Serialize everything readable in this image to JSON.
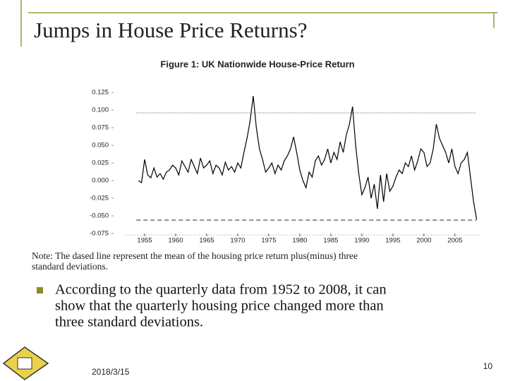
{
  "slide": {
    "title": "Jumps in House Price Returns?",
    "note": [
      "Note: The dased line represent the mean of the housing price return plus(minus) three",
      "standard deviations."
    ],
    "bullet": [
      "According to the quarterly data from 1952 to 2008, it can",
      "show that the quarterly housing price changed more than",
      "three standard deviations."
    ],
    "date": "2018/3/15",
    "page_number": "10"
  },
  "chart_data": {
    "type": "line",
    "title": "Figure 1: UK Nationwide House-Price Return",
    "color": "#000000",
    "x": [
      1954,
      1954.5,
      1955,
      1955.5,
      1956,
      1956.5,
      1957,
      1957.5,
      1958,
      1958.5,
      1959,
      1959.5,
      1960,
      1960.5,
      1961,
      1961.5,
      1962,
      1962.5,
      1963,
      1963.5,
      1964,
      1964.5,
      1965,
      1965.5,
      1966,
      1966.5,
      1967,
      1967.5,
      1968,
      1968.5,
      1969,
      1969.5,
      1970,
      1970.5,
      1971,
      1971.5,
      1972,
      1972.5,
      1973,
      1973.5,
      1974,
      1974.5,
      1975,
      1975.5,
      1976,
      1976.5,
      1977,
      1977.5,
      1978,
      1978.5,
      1979,
      1979.5,
      1980,
      1980.5,
      1981,
      1981.5,
      1982,
      1982.5,
      1983,
      1983.5,
      1984,
      1984.5,
      1985,
      1985.5,
      1986,
      1986.5,
      1987,
      1987.5,
      1988,
      1988.5,
      1989,
      1989.5,
      1990,
      1990.5,
      1991,
      1991.5,
      1992,
      1992.5,
      1993,
      1993.5,
      1994,
      1994.5,
      1995,
      1995.5,
      1996,
      1996.5,
      1997,
      1997.5,
      1998,
      1998.5,
      1999,
      1999.5,
      2000,
      2000.5,
      2001,
      2001.5,
      2002,
      2002.5,
      2003,
      2003.5,
      2004,
      2004.5,
      2005,
      2005.5,
      2006,
      2006.5,
      2007,
      2007.5,
      2008,
      2008.5
    ],
    "values": [
      0.0,
      -0.003,
      0.03,
      0.008,
      0.004,
      0.018,
      0.005,
      0.01,
      0.002,
      0.012,
      0.015,
      0.022,
      0.018,
      0.008,
      0.028,
      0.02,
      0.012,
      0.03,
      0.02,
      0.01,
      0.032,
      0.018,
      0.022,
      0.028,
      0.01,
      0.022,
      0.018,
      0.008,
      0.026,
      0.015,
      0.02,
      0.012,
      0.025,
      0.018,
      0.04,
      0.06,
      0.085,
      0.12,
      0.075,
      0.045,
      0.03,
      0.012,
      0.018,
      0.025,
      0.01,
      0.022,
      0.015,
      0.028,
      0.035,
      0.045,
      0.062,
      0.04,
      0.015,
      0.0,
      -0.01,
      0.012,
      0.005,
      0.028,
      0.035,
      0.022,
      0.03,
      0.045,
      0.025,
      0.04,
      0.03,
      0.055,
      0.04,
      0.065,
      0.08,
      0.105,
      0.05,
      0.01,
      -0.02,
      -0.01,
      0.005,
      -0.025,
      -0.005,
      -0.04,
      0.008,
      -0.03,
      0.01,
      -0.015,
      -0.008,
      0.005,
      0.015,
      0.01,
      0.025,
      0.02,
      0.035,
      0.015,
      0.028,
      0.045,
      0.04,
      0.02,
      0.025,
      0.045,
      0.08,
      0.06,
      0.05,
      0.04,
      0.025,
      0.045,
      0.02,
      0.01,
      0.025,
      0.03,
      0.04,
      0.005,
      -0.03,
      -0.055
    ],
    "xlim": [
      1952,
      2009
    ],
    "xticks": [
      1955,
      1960,
      1965,
      1970,
      1975,
      1980,
      1985,
      1990,
      1995,
      2000,
      2005
    ],
    "ylim": [
      -0.075,
      0.125
    ],
    "yticks": [
      {
        "value": -0.075,
        "label": "-0.075"
      },
      {
        "value": -0.05,
        "label": "-0.050"
      },
      -0.025,
      {
        "value": 0,
        "label": "0.000"
      },
      0.025,
      {
        "value": 0.05,
        "label": "0.050"
      },
      0.075,
      {
        "value": 0.1,
        "label": "0.100"
      },
      0.125
    ],
    "reference_lines": [
      {
        "value": 0.096,
        "style": "dotted"
      },
      {
        "value": -0.056,
        "style": "dashed"
      }
    ]
  }
}
